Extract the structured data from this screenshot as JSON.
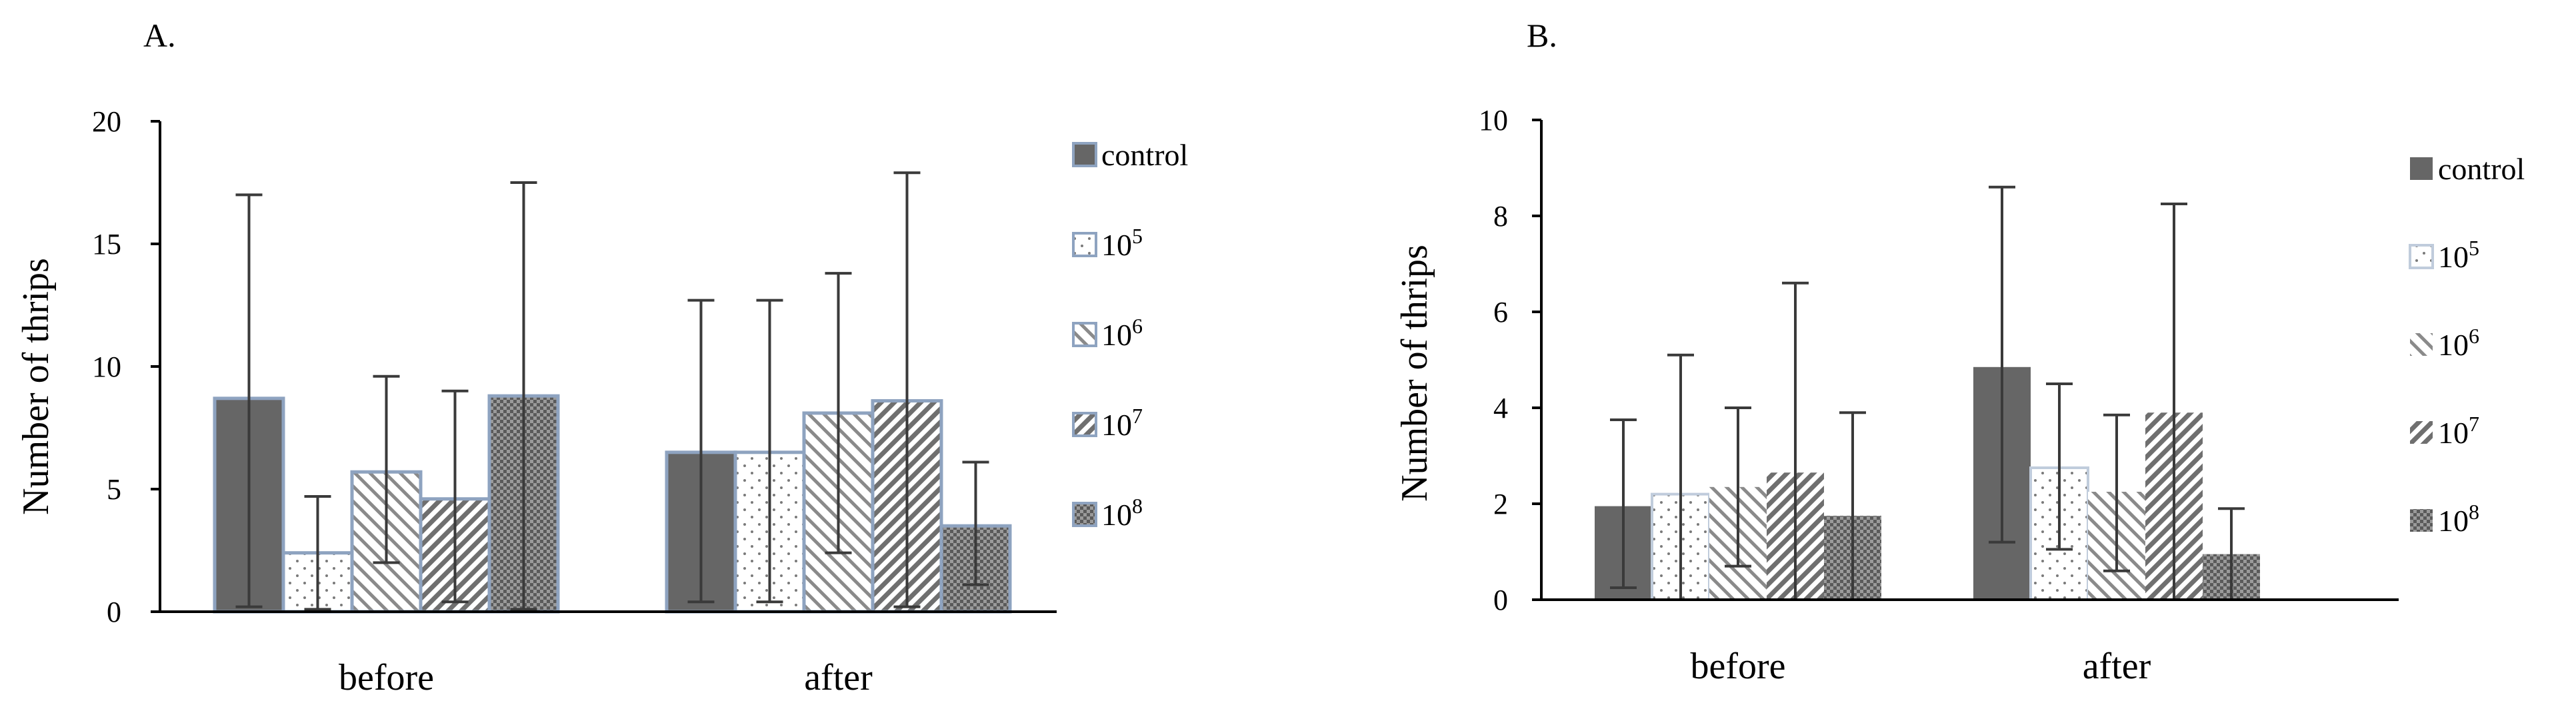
{
  "chart_data": [
    {
      "type": "bar",
      "panel_label": "A.",
      "ylabel": "Number of thrips",
      "ylim": [
        0,
        20
      ],
      "yticks": [
        "0",
        "5",
        "10",
        "15",
        "20"
      ],
      "categories": [
        "before",
        "after"
      ],
      "legend_position": "right",
      "series": [
        {
          "name": "control",
          "pattern": "solid",
          "values": [
            8.7,
            6.5
          ],
          "err_low": [
            0.2,
            0.4
          ],
          "err_high": [
            17.0,
            12.7
          ]
        },
        {
          "name": "10^5",
          "base": "10",
          "exp": "5",
          "pattern": "dots",
          "values": [
            2.4,
            6.5
          ],
          "err_low": [
            0.1,
            0.4
          ],
          "err_high": [
            4.7,
            12.7
          ]
        },
        {
          "name": "10^6",
          "base": "10",
          "exp": "6",
          "pattern": "diag-fwd",
          "values": [
            5.7,
            8.1
          ],
          "err_low": [
            2.0,
            2.4
          ],
          "err_high": [
            9.6,
            13.8
          ]
        },
        {
          "name": "10^7",
          "base": "10",
          "exp": "7",
          "pattern": "diag-back",
          "values": [
            4.6,
            8.6
          ],
          "err_low": [
            0.4,
            0.2
          ],
          "err_high": [
            9.0,
            17.9
          ]
        },
        {
          "name": "10^8",
          "base": "10",
          "exp": "8",
          "pattern": "grid",
          "values": [
            8.8,
            3.5
          ],
          "err_low": [
            0.1,
            1.1
          ],
          "err_high": [
            17.5,
            6.1
          ]
        }
      ]
    },
    {
      "type": "bar",
      "panel_label": "B.",
      "ylabel": "Number of thrips",
      "ylim": [
        0,
        10
      ],
      "yticks": [
        "0",
        "2",
        "4",
        "6",
        "8",
        "10"
      ],
      "categories": [
        "before",
        "after"
      ],
      "legend_position": "right",
      "series": [
        {
          "name": "control",
          "pattern": "solid",
          "values": [
            1.95,
            4.85
          ],
          "err_low": [
            0.25,
            1.2
          ],
          "err_high": [
            3.75,
            8.6
          ]
        },
        {
          "name": "10^5",
          "base": "10",
          "exp": "5",
          "pattern": "dots",
          "values": [
            2.2,
            2.75
          ],
          "err_low": [
            0.0,
            1.05
          ],
          "err_high": [
            5.1,
            4.5
          ]
        },
        {
          "name": "10^6",
          "base": "10",
          "exp": "6",
          "pattern": "diag-fwd",
          "values": [
            2.35,
            2.25
          ],
          "err_low": [
            0.7,
            0.6
          ],
          "err_high": [
            4.0,
            3.85
          ]
        },
        {
          "name": "10^7",
          "base": "10",
          "exp": "7",
          "pattern": "diag-back",
          "values": [
            2.65,
            3.9
          ],
          "err_low": [
            0.0,
            0.0
          ],
          "err_high": [
            6.6,
            8.25
          ]
        },
        {
          "name": "10^8",
          "base": "10",
          "exp": "8",
          "pattern": "grid",
          "values": [
            1.75,
            0.95
          ],
          "err_low": [
            0.0,
            0.0
          ],
          "err_high": [
            3.9,
            1.9
          ]
        }
      ]
    }
  ]
}
